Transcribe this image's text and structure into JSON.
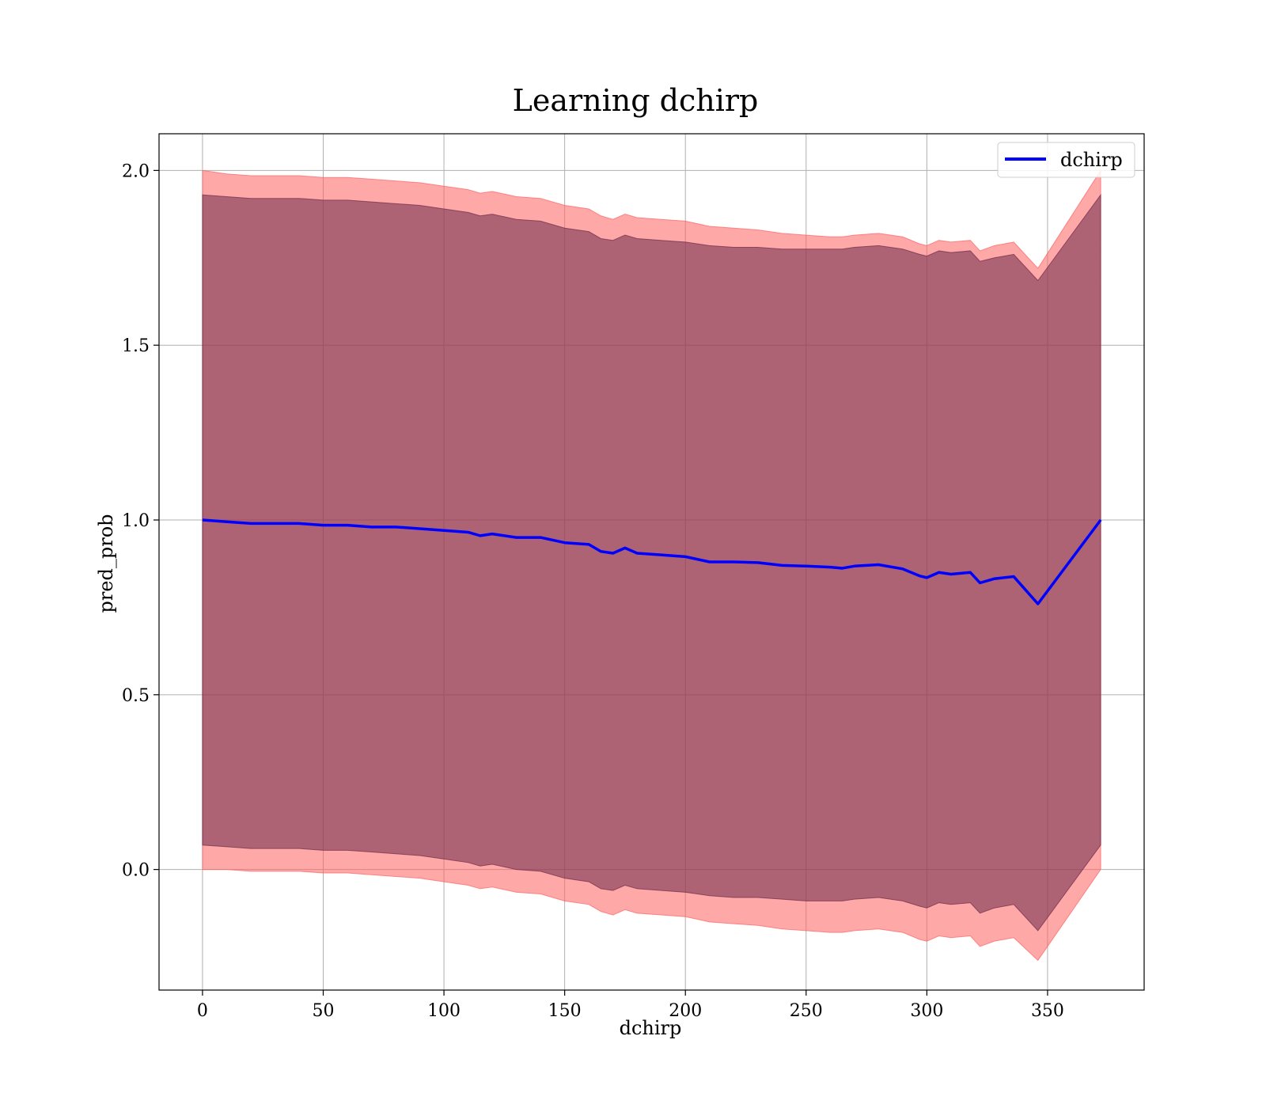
{
  "chart_data": {
    "type": "line",
    "title": "Learning dchirp",
    "xlabel": "dchirp",
    "ylabel": "pred_prob",
    "xlim": [
      -18,
      390
    ],
    "ylim": [
      -0.345,
      2.105
    ],
    "xticks": [
      0,
      50,
      100,
      150,
      200,
      250,
      300,
      350
    ],
    "yticks": [
      0.0,
      0.5,
      1.0,
      1.5,
      2.0
    ],
    "xtick_labels": [
      "0",
      "50",
      "100",
      "150",
      "200",
      "250",
      "300",
      "350"
    ],
    "ytick_labels": [
      "0.0",
      "0.5",
      "1.0",
      "1.5",
      "2.0"
    ],
    "grid": true,
    "legend_position": "top-right",
    "series": [
      {
        "name": "dchirp",
        "color": "#0000ff",
        "x": [
          0,
          10,
          20,
          30,
          40,
          50,
          60,
          70,
          80,
          90,
          100,
          110,
          115,
          120,
          130,
          140,
          150,
          160,
          165,
          170,
          175,
          180,
          190,
          200,
          210,
          220,
          230,
          240,
          250,
          260,
          265,
          270,
          280,
          290,
          297,
          300,
          305,
          310,
          318,
          322,
          328,
          336,
          346,
          372
        ],
        "y": [
          1.0,
          0.995,
          0.99,
          0.99,
          0.99,
          0.985,
          0.985,
          0.98,
          0.98,
          0.975,
          0.97,
          0.965,
          0.955,
          0.96,
          0.95,
          0.95,
          0.935,
          0.93,
          0.91,
          0.905,
          0.92,
          0.905,
          0.9,
          0.895,
          0.88,
          0.88,
          0.878,
          0.87,
          0.868,
          0.865,
          0.862,
          0.868,
          0.872,
          0.86,
          0.84,
          0.835,
          0.85,
          0.845,
          0.85,
          0.82,
          0.832,
          0.838,
          0.76,
          1.0
        ]
      }
    ],
    "bands": [
      {
        "kind": "outer",
        "color": "#ff6060",
        "x": [
          0,
          10,
          20,
          30,
          40,
          50,
          60,
          70,
          80,
          90,
          100,
          110,
          115,
          120,
          130,
          140,
          150,
          160,
          165,
          170,
          175,
          180,
          190,
          200,
          210,
          220,
          230,
          240,
          250,
          260,
          265,
          270,
          280,
          290,
          297,
          300,
          305,
          310,
          318,
          322,
          328,
          336,
          346,
          372
        ],
        "upper": [
          2.0,
          1.99,
          1.985,
          1.985,
          1.985,
          1.98,
          1.98,
          1.975,
          1.97,
          1.965,
          1.955,
          1.945,
          1.935,
          1.94,
          1.925,
          1.92,
          1.9,
          1.89,
          1.87,
          1.86,
          1.875,
          1.865,
          1.86,
          1.855,
          1.84,
          1.835,
          1.83,
          1.82,
          1.815,
          1.81,
          1.81,
          1.815,
          1.82,
          1.81,
          1.79,
          1.785,
          1.8,
          1.795,
          1.8,
          1.77,
          1.785,
          1.795,
          1.72,
          2.0
        ],
        "lower": [
          0.0,
          0.0,
          -0.005,
          -0.005,
          -0.005,
          -0.01,
          -0.01,
          -0.015,
          -0.02,
          -0.025,
          -0.035,
          -0.045,
          -0.055,
          -0.05,
          -0.065,
          -0.07,
          -0.09,
          -0.1,
          -0.12,
          -0.13,
          -0.115,
          -0.125,
          -0.13,
          -0.135,
          -0.15,
          -0.155,
          -0.16,
          -0.17,
          -0.175,
          -0.18,
          -0.18,
          -0.175,
          -0.17,
          -0.18,
          -0.2,
          -0.205,
          -0.19,
          -0.195,
          -0.19,
          -0.22,
          -0.205,
          -0.195,
          -0.26,
          0.0
        ]
      },
      {
        "kind": "inner",
        "color": "#6b2a48",
        "x": [
          0,
          10,
          20,
          30,
          40,
          50,
          60,
          70,
          80,
          90,
          100,
          110,
          115,
          120,
          130,
          140,
          150,
          160,
          165,
          170,
          175,
          180,
          190,
          200,
          210,
          220,
          230,
          240,
          250,
          260,
          265,
          270,
          280,
          290,
          297,
          300,
          305,
          310,
          318,
          322,
          328,
          336,
          346,
          372
        ],
        "upper": [
          1.93,
          1.925,
          1.92,
          1.92,
          1.92,
          1.915,
          1.915,
          1.91,
          1.905,
          1.9,
          1.89,
          1.88,
          1.87,
          1.875,
          1.86,
          1.855,
          1.835,
          1.825,
          1.805,
          1.8,
          1.815,
          1.805,
          1.8,
          1.795,
          1.785,
          1.78,
          1.78,
          1.775,
          1.775,
          1.775,
          1.775,
          1.78,
          1.785,
          1.775,
          1.76,
          1.755,
          1.77,
          1.765,
          1.77,
          1.74,
          1.75,
          1.76,
          1.685,
          1.93
        ],
        "lower": [
          0.07,
          0.065,
          0.06,
          0.06,
          0.06,
          0.055,
          0.055,
          0.05,
          0.045,
          0.04,
          0.03,
          0.02,
          0.01,
          0.015,
          0.0,
          -0.005,
          -0.025,
          -0.035,
          -0.055,
          -0.06,
          -0.045,
          -0.055,
          -0.06,
          -0.065,
          -0.075,
          -0.08,
          -0.08,
          -0.085,
          -0.09,
          -0.09,
          -0.09,
          -0.085,
          -0.08,
          -0.09,
          -0.105,
          -0.11,
          -0.095,
          -0.1,
          -0.095,
          -0.125,
          -0.11,
          -0.1,
          -0.175,
          0.07
        ]
      }
    ]
  }
}
